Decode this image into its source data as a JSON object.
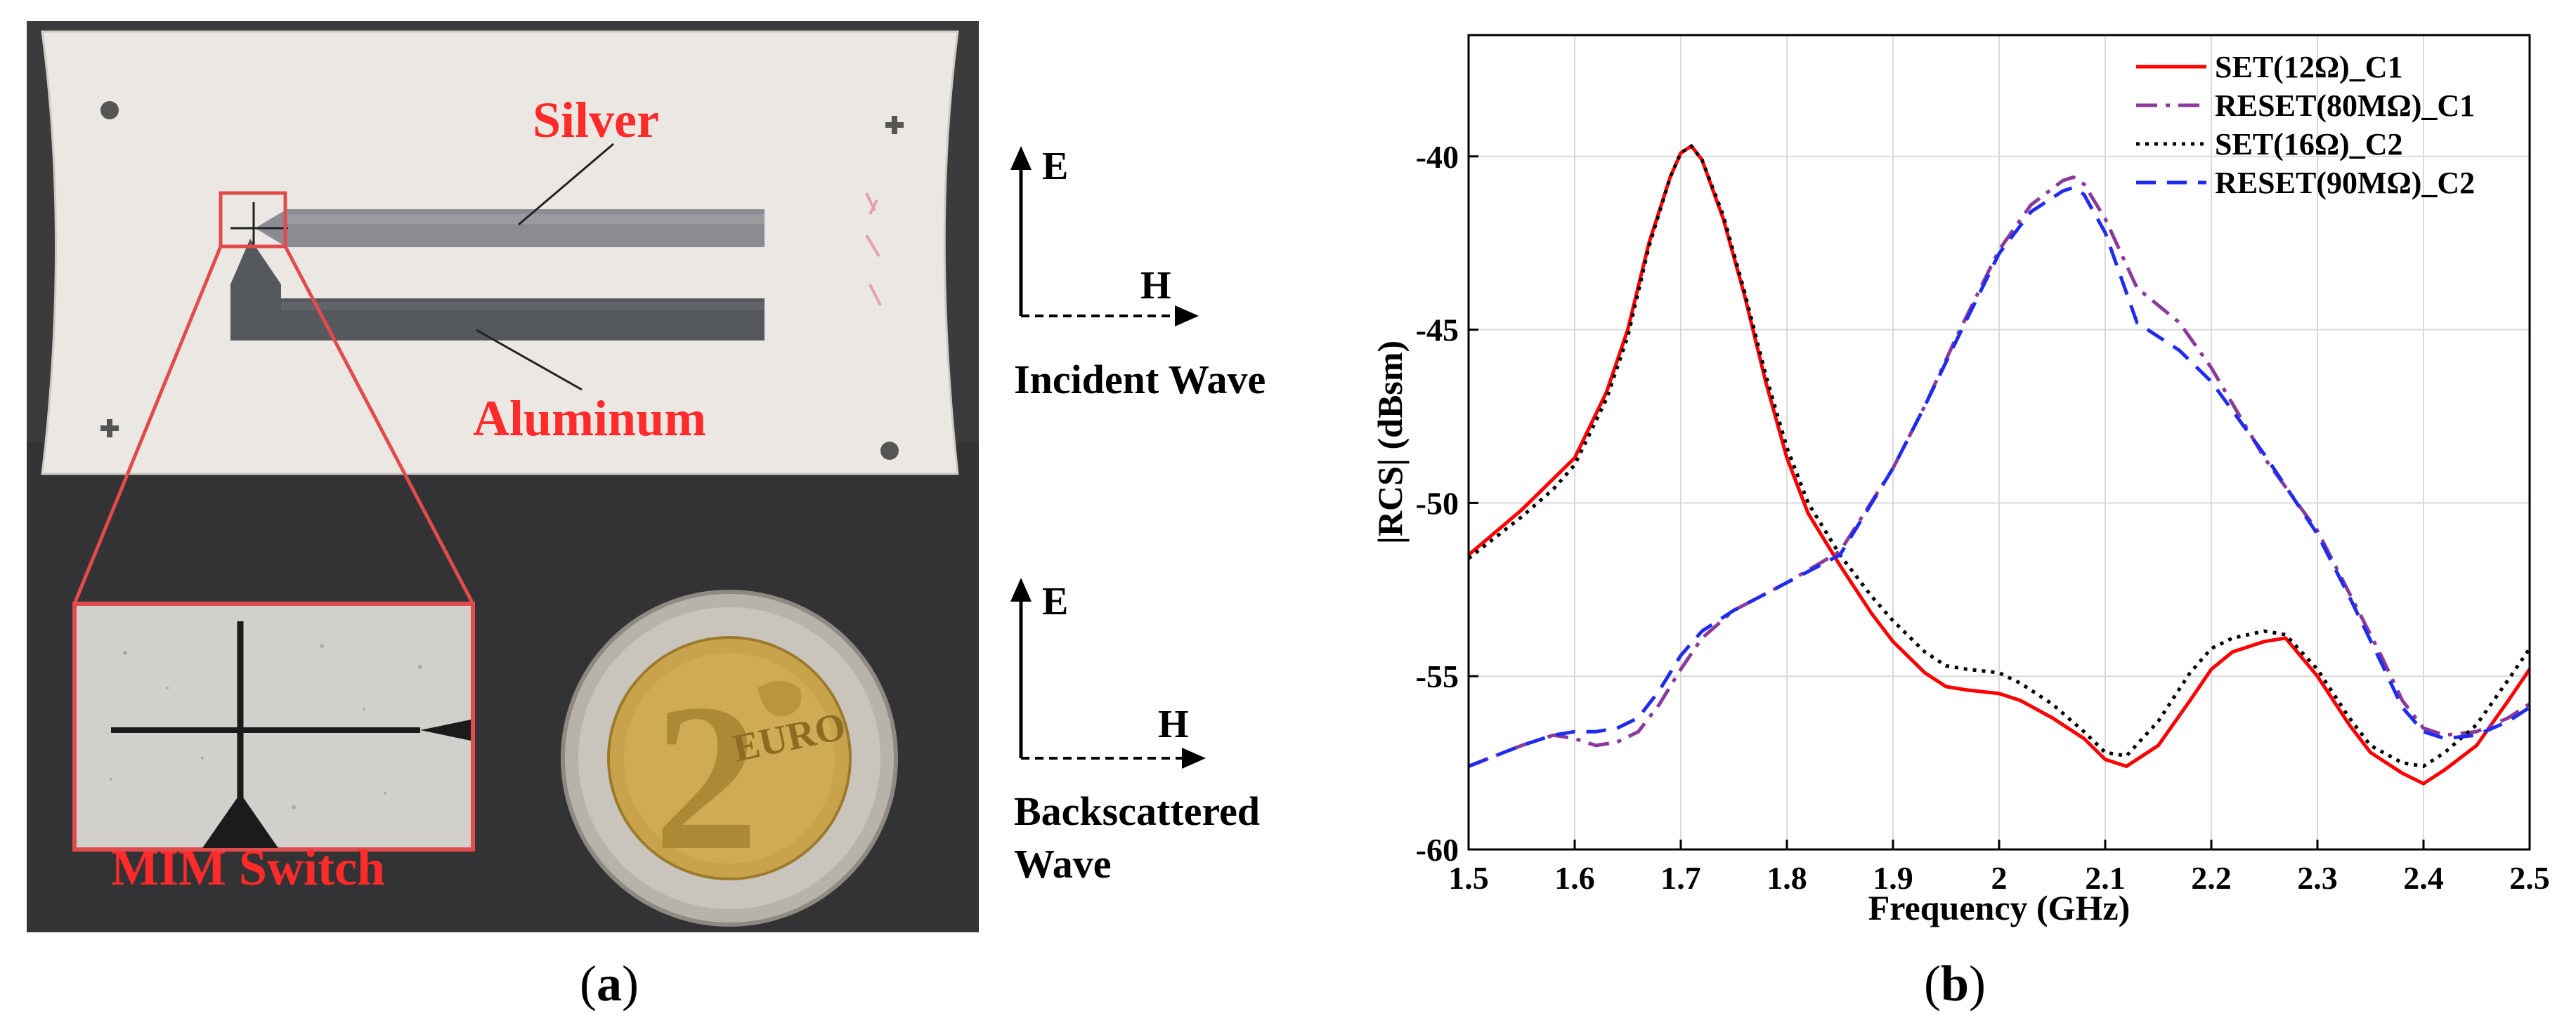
{
  "figure": {
    "panel_a": {
      "caption_letter": "a",
      "labels": {
        "silver": "Silver",
        "aluminum": "Aluminum",
        "switch": "MIM Switch"
      },
      "incident": {
        "e": "E",
        "h": "H",
        "title": "Incident Wave"
      },
      "backscattered": {
        "e": "E",
        "h": "H",
        "line1": "Backscattered",
        "line2": "Wave"
      },
      "coin": {
        "digit": "2",
        "text": "EURO"
      },
      "colors": {
        "label": "#ff2a2a",
        "background": "#3b3b3d",
        "card": "#e9e6e2",
        "inset": "#e24b4b"
      }
    },
    "panel_b": {
      "caption_letter": "b"
    }
  },
  "chart_data": {
    "type": "line",
    "title": "",
    "xlabel": "Frequency (GHz)",
    "ylabel": "|RCS| (dBsm)",
    "xlim": [
      1.5,
      2.5
    ],
    "ylim": [
      -60,
      -36.5
    ],
    "xticks": [
      1.5,
      1.6,
      1.7,
      1.8,
      1.9,
      2,
      2.1,
      2.2,
      2.3,
      2.4,
      2.5
    ],
    "xtick_labels": [
      "1.5",
      "1.6",
      "1.7",
      "1.8",
      "1.9",
      "2",
      "2.1",
      "2.2",
      "2.3",
      "2.4",
      "2.5"
    ],
    "yticks": [
      -60,
      -55,
      -50,
      -45,
      -40
    ],
    "ytick_labels": [
      "-60",
      "-55",
      "-50",
      "-45",
      "-40"
    ],
    "grid": true,
    "legend_position": "top-right",
    "series": [
      {
        "name": "SET(12Ω)_C1",
        "color": "#ff0000",
        "style": "solid",
        "x": [
          1.5,
          1.55,
          1.58,
          1.6,
          1.63,
          1.65,
          1.67,
          1.69,
          1.7,
          1.71,
          1.72,
          1.74,
          1.76,
          1.78,
          1.8,
          1.82,
          1.85,
          1.88,
          1.9,
          1.93,
          1.95,
          1.97,
          2.0,
          2.02,
          2.05,
          2.08,
          2.1,
          2.12,
          2.15,
          2.18,
          2.2,
          2.22,
          2.25,
          2.27,
          2.3,
          2.33,
          2.35,
          2.38,
          2.4,
          2.42,
          2.45,
          2.48,
          2.5
        ],
        "values": [
          -51.5,
          -50.2,
          -49.3,
          -48.7,
          -46.8,
          -45.0,
          -42.5,
          -40.6,
          -39.9,
          -39.7,
          -40.1,
          -41.8,
          -44.0,
          -46.5,
          -48.7,
          -50.3,
          -51.8,
          -53.2,
          -54.0,
          -54.9,
          -55.3,
          -55.4,
          -55.5,
          -55.7,
          -56.2,
          -56.8,
          -57.4,
          -57.6,
          -57.0,
          -55.7,
          -54.8,
          -54.3,
          -54.0,
          -53.9,
          -55.0,
          -56.4,
          -57.2,
          -57.8,
          -58.1,
          -57.7,
          -57.0,
          -55.7,
          -54.8
        ]
      },
      {
        "name": "RESET(80MΩ)_C1",
        "color": "#8b3a9b",
        "style": "dashdot",
        "x": [
          1.5,
          1.55,
          1.58,
          1.6,
          1.62,
          1.64,
          1.66,
          1.68,
          1.7,
          1.72,
          1.75,
          1.8,
          1.85,
          1.9,
          1.93,
          1.96,
          2.0,
          2.03,
          2.06,
          2.07,
          2.08,
          2.1,
          2.13,
          2.17,
          2.2,
          2.25,
          2.3,
          2.33,
          2.36,
          2.38,
          2.4,
          2.42,
          2.45,
          2.48,
          2.5
        ],
        "values": [
          -57.6,
          -57.0,
          -56.7,
          -56.8,
          -57.0,
          -56.9,
          -56.6,
          -55.8,
          -54.8,
          -53.9,
          -53.1,
          -52.3,
          -51.4,
          -49.0,
          -47.2,
          -45.2,
          -42.7,
          -41.4,
          -40.7,
          -40.6,
          -40.8,
          -41.8,
          -43.8,
          -44.8,
          -46.1,
          -48.7,
          -50.8,
          -52.6,
          -54.4,
          -55.7,
          -56.5,
          -56.7,
          -56.6,
          -56.2,
          -55.8
        ]
      },
      {
        "name": "SET(16Ω)_C2",
        "color": "#000000",
        "style": "dotted",
        "x": [
          1.5,
          1.55,
          1.58,
          1.6,
          1.63,
          1.65,
          1.67,
          1.69,
          1.7,
          1.71,
          1.72,
          1.74,
          1.76,
          1.78,
          1.8,
          1.82,
          1.85,
          1.88,
          1.9,
          1.93,
          1.95,
          1.97,
          2.0,
          2.02,
          2.05,
          2.08,
          2.1,
          2.12,
          2.15,
          2.18,
          2.2,
          2.22,
          2.25,
          2.27,
          2.3,
          2.33,
          2.35,
          2.38,
          2.4,
          2.42,
          2.45,
          2.48,
          2.5
        ],
        "values": [
          -51.6,
          -50.4,
          -49.6,
          -48.9,
          -47.0,
          -45.2,
          -42.6,
          -40.6,
          -39.9,
          -39.7,
          -40.1,
          -41.7,
          -43.9,
          -46.3,
          -48.4,
          -50.0,
          -51.5,
          -52.7,
          -53.4,
          -54.3,
          -54.7,
          -54.8,
          -54.9,
          -55.2,
          -55.8,
          -56.6,
          -57.2,
          -57.3,
          -56.3,
          -54.9,
          -54.2,
          -53.9,
          -53.7,
          -53.8,
          -54.8,
          -56.2,
          -57.0,
          -57.5,
          -57.6,
          -57.2,
          -56.4,
          -55.1,
          -54.2
        ]
      },
      {
        "name": "RESET(90MΩ)_C2",
        "color": "#1f2cf0",
        "style": "dashed",
        "x": [
          1.5,
          1.55,
          1.58,
          1.6,
          1.62,
          1.64,
          1.66,
          1.68,
          1.7,
          1.72,
          1.75,
          1.8,
          1.85,
          1.9,
          1.93,
          1.96,
          2.0,
          2.03,
          2.06,
          2.07,
          2.08,
          2.1,
          2.13,
          2.17,
          2.2,
          2.25,
          2.3,
          2.33,
          2.36,
          2.38,
          2.4,
          2.42,
          2.45,
          2.48,
          2.5
        ],
        "values": [
          -57.6,
          -57.0,
          -56.7,
          -56.6,
          -56.6,
          -56.5,
          -56.2,
          -55.4,
          -54.4,
          -53.7,
          -53.1,
          -52.3,
          -51.5,
          -49.0,
          -47.2,
          -45.3,
          -42.8,
          -41.6,
          -41.0,
          -40.9,
          -41.1,
          -42.2,
          -44.8,
          -45.6,
          -46.5,
          -48.6,
          -50.9,
          -52.7,
          -54.6,
          -55.9,
          -56.6,
          -56.8,
          -56.7,
          -56.3,
          -55.9
        ]
      }
    ]
  }
}
